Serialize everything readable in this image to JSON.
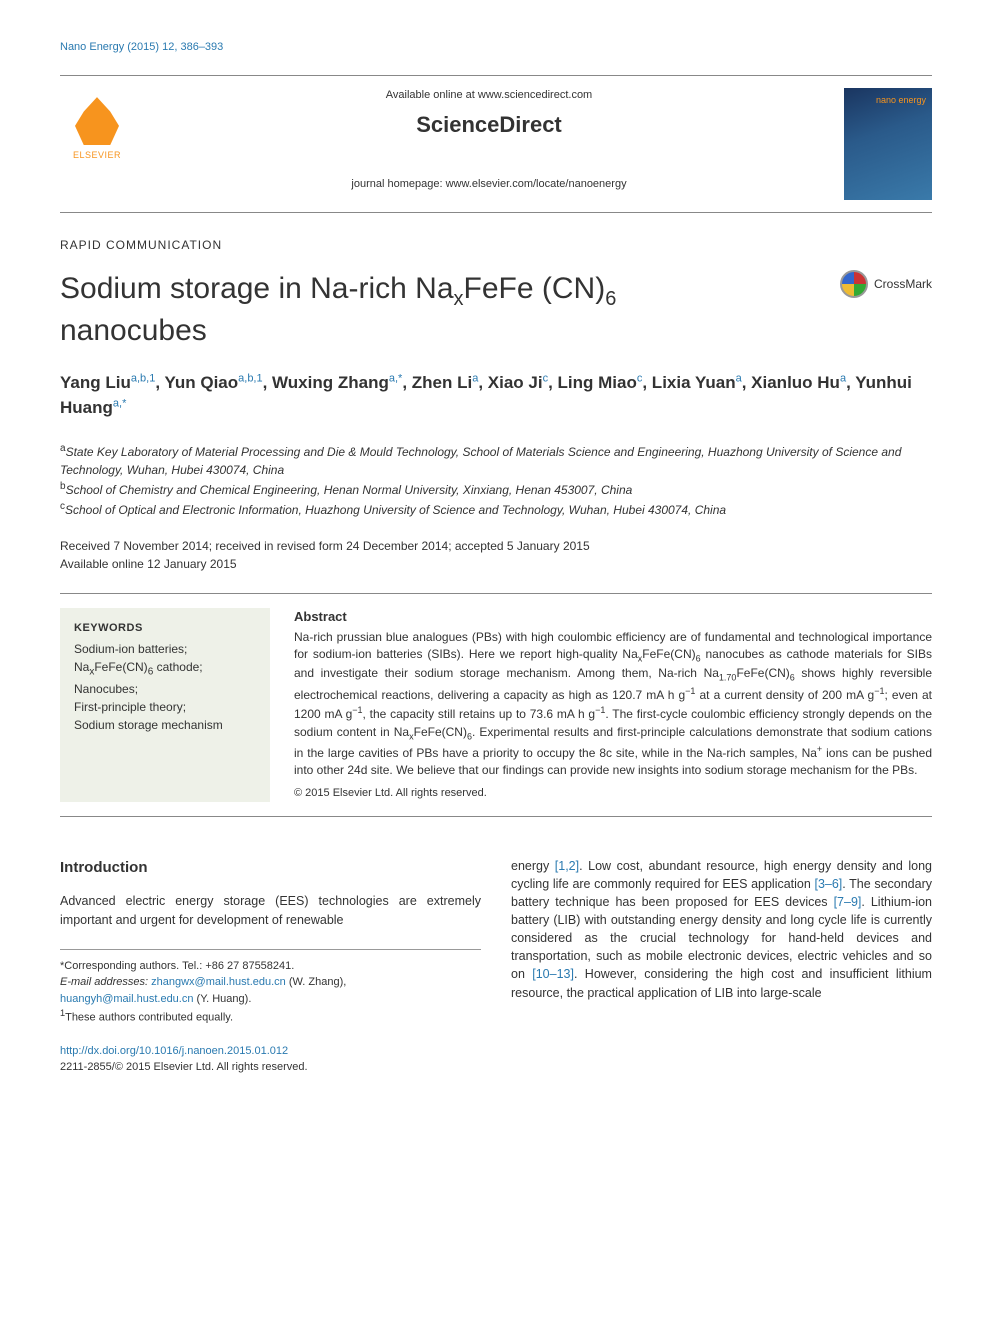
{
  "header": {
    "citation": "Nano Energy (2015) 12, 386–393",
    "available_text": "Available online at www.sciencedirect.com",
    "sciencedirect": "ScienceDirect",
    "homepage_text": "journal homepage: www.elsevier.com/locate/nanoenergy",
    "elsevier_label": "ELSEVIER",
    "journal_cover_title": "nano energy"
  },
  "article": {
    "type": "RAPID COMMUNICATION",
    "title_html": "Sodium storage in Na-rich Na<sub>x</sub>FeFe (CN)<sub>6</sub> nanocubes",
    "crossmark_label": "CrossMark"
  },
  "authors_html": "Yang Liu<sup>a,b,1</sup>, Yun Qiao<sup>a,b,1</sup>, Wuxing Zhang<sup>a,<span class=\"corr\">*</span></sup>, Zhen Li<sup>a</sup>, Xiao Ji<sup>c</sup>, Ling Miao<sup>c</sup>, Lixia Yuan<sup>a</sup>, Xianluo Hu<sup>a</sup>, Yunhui Huang<sup>a,<span class=\"corr\">*</span></sup>",
  "affiliations": {
    "a": "State Key Laboratory of Material Processing and Die & Mould Technology, School of Materials Science and Engineering, Huazhong University of Science and Technology, Wuhan, Hubei 430074, China",
    "b": "School of Chemistry and Chemical Engineering, Henan Normal University, Xinxiang, Henan 453007, China",
    "c": "School of Optical and Electronic Information, Huazhong University of Science and Technology, Wuhan, Hubei 430074, China"
  },
  "dates": {
    "received": "Received 7 November 2014; received in revised form 24 December 2014; accepted 5 January 2015",
    "online": "Available online 12 January 2015"
  },
  "keywords": {
    "heading": "KEYWORDS",
    "items_html": "Sodium-ion batteries;<br>Na<sub>x</sub>FeFe(CN)<sub>6</sub> cathode;<br>Nanocubes;<br>First-principle theory;<br>Sodium storage mechanism"
  },
  "abstract": {
    "heading": "Abstract",
    "body_html": "Na-rich prussian blue analogues (PBs) with high coulombic efficiency are of fundamental and technological importance for sodium-ion batteries (SIBs). Here we report high-quality Na<sub>x</sub>FeFe(CN)<sub>6</sub> nanocubes as cathode materials for SIBs and investigate their sodium storage mechanism. Among them, Na-rich Na<sub>1.70</sub>FeFe(CN)<sub>6</sub> shows highly reversible electrochemical reactions, delivering a capacity as high as 120.7 mA h g<sup>−1</sup> at a current density of 200 mA g<sup>−1</sup>; even at 1200 mA g<sup>−1</sup>, the capacity still retains up to 73.6 mA h g<sup>−1</sup>. The first-cycle coulombic efficiency strongly depends on the sodium content in Na<sub>x</sub>FeFe(CN)<sub>6</sub>. Experimental results and first-principle calculations demonstrate that sodium cations in the large cavities of PBs have a priority to occupy the 8c site, while in the Na-rich samples, Na<sup>+</sup> ions can be pushed into other 24d site. We believe that our findings can provide new insights into sodium storage mechanism for the PBs.",
    "copyright": "© 2015 Elsevier Ltd. All rights reserved."
  },
  "body": {
    "intro_heading": "Introduction",
    "col1_html": "Advanced electric energy storage (EES) technologies are extremely important and urgent for development of renewable",
    "col2_html": "energy <span class=\"cite-link\">[1,2]</span>. Low cost, abundant resource, high energy density and long cycling life are commonly required for EES application <span class=\"cite-link\">[3–6]</span>. The secondary battery technique has been proposed for EES devices <span class=\"cite-link\">[7–9]</span>. Lithium-ion battery (LIB) with outstanding energy density and long cycle life is currently considered as the crucial technology for hand-held devices and transportation, such as mobile electronic devices, electric vehicles and so on <span class=\"cite-link\">[10–13]</span>. However, considering the high cost and insufficient lithium resource, the practical application of LIB into large-scale"
  },
  "footnotes": {
    "corr": "*Corresponding authors. Tel.: +86 27 87558241.",
    "email_label": "E-mail addresses:",
    "email1": "zhangwx@mail.hust.edu.cn",
    "email1_who": "(W. Zhang),",
    "email2": "huangyh@mail.hust.edu.cn",
    "email2_who": "(Y. Huang).",
    "equal": "1These authors contributed equally."
  },
  "footer": {
    "doi": "http://dx.doi.org/10.1016/j.nanoen.2015.01.012",
    "issn_copy": "2211-2855/© 2015 Elsevier Ltd. All rights reserved."
  },
  "colors": {
    "link": "#2a7ab0",
    "accent_orange": "#f7941e",
    "keywords_bg": "#eef1e8",
    "border_gray": "#888888"
  }
}
